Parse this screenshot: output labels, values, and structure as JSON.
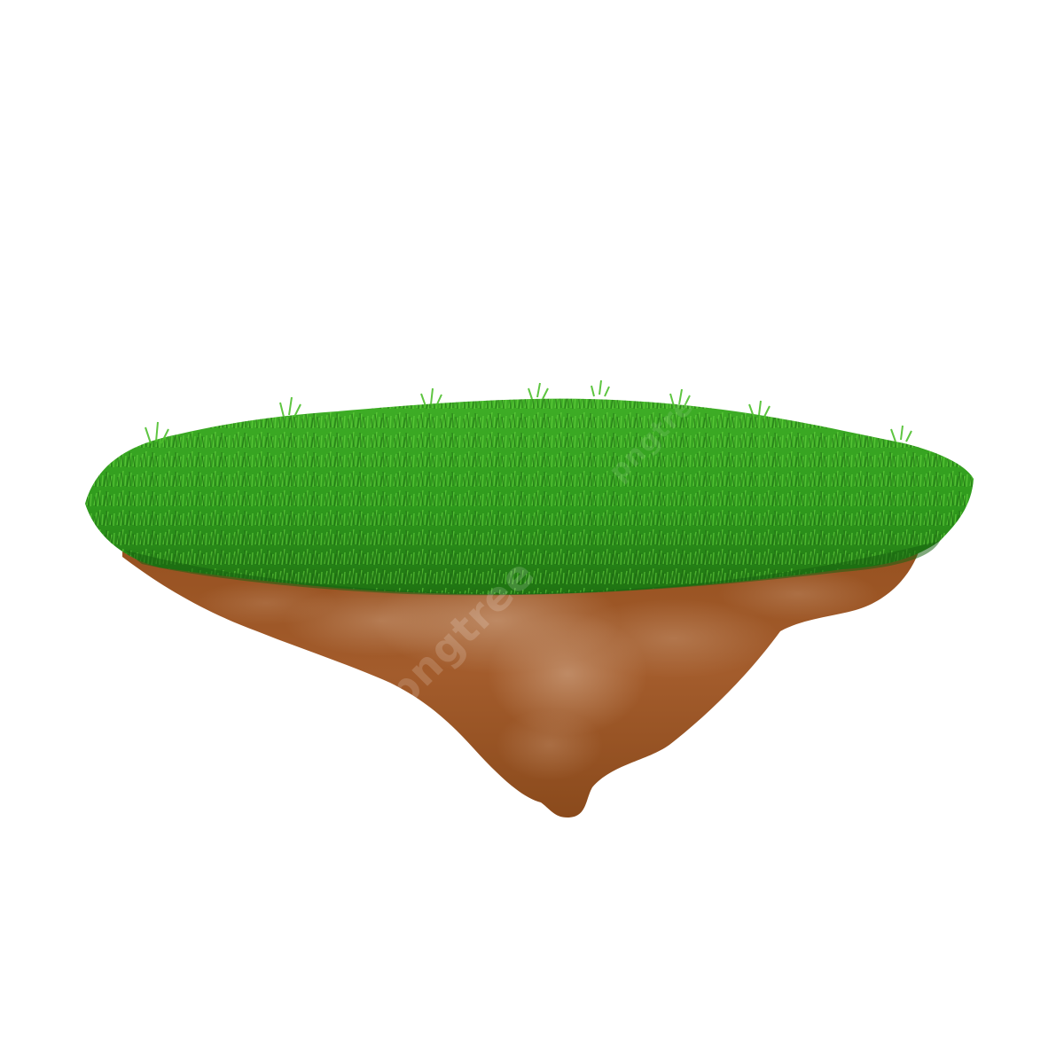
{
  "scene": {
    "subject": "floating-grass-island",
    "background_color": "#ffffff"
  },
  "colors": {
    "grass_dark": "#1f6f14",
    "grass_mid": "#2e9a1e",
    "grass_light": "#5fd03a",
    "soil_dark": "#8a4a1c",
    "soil_mid": "#a0582a",
    "soil_light": "#c08a62"
  },
  "watermark": {
    "text": "pngtree"
  }
}
